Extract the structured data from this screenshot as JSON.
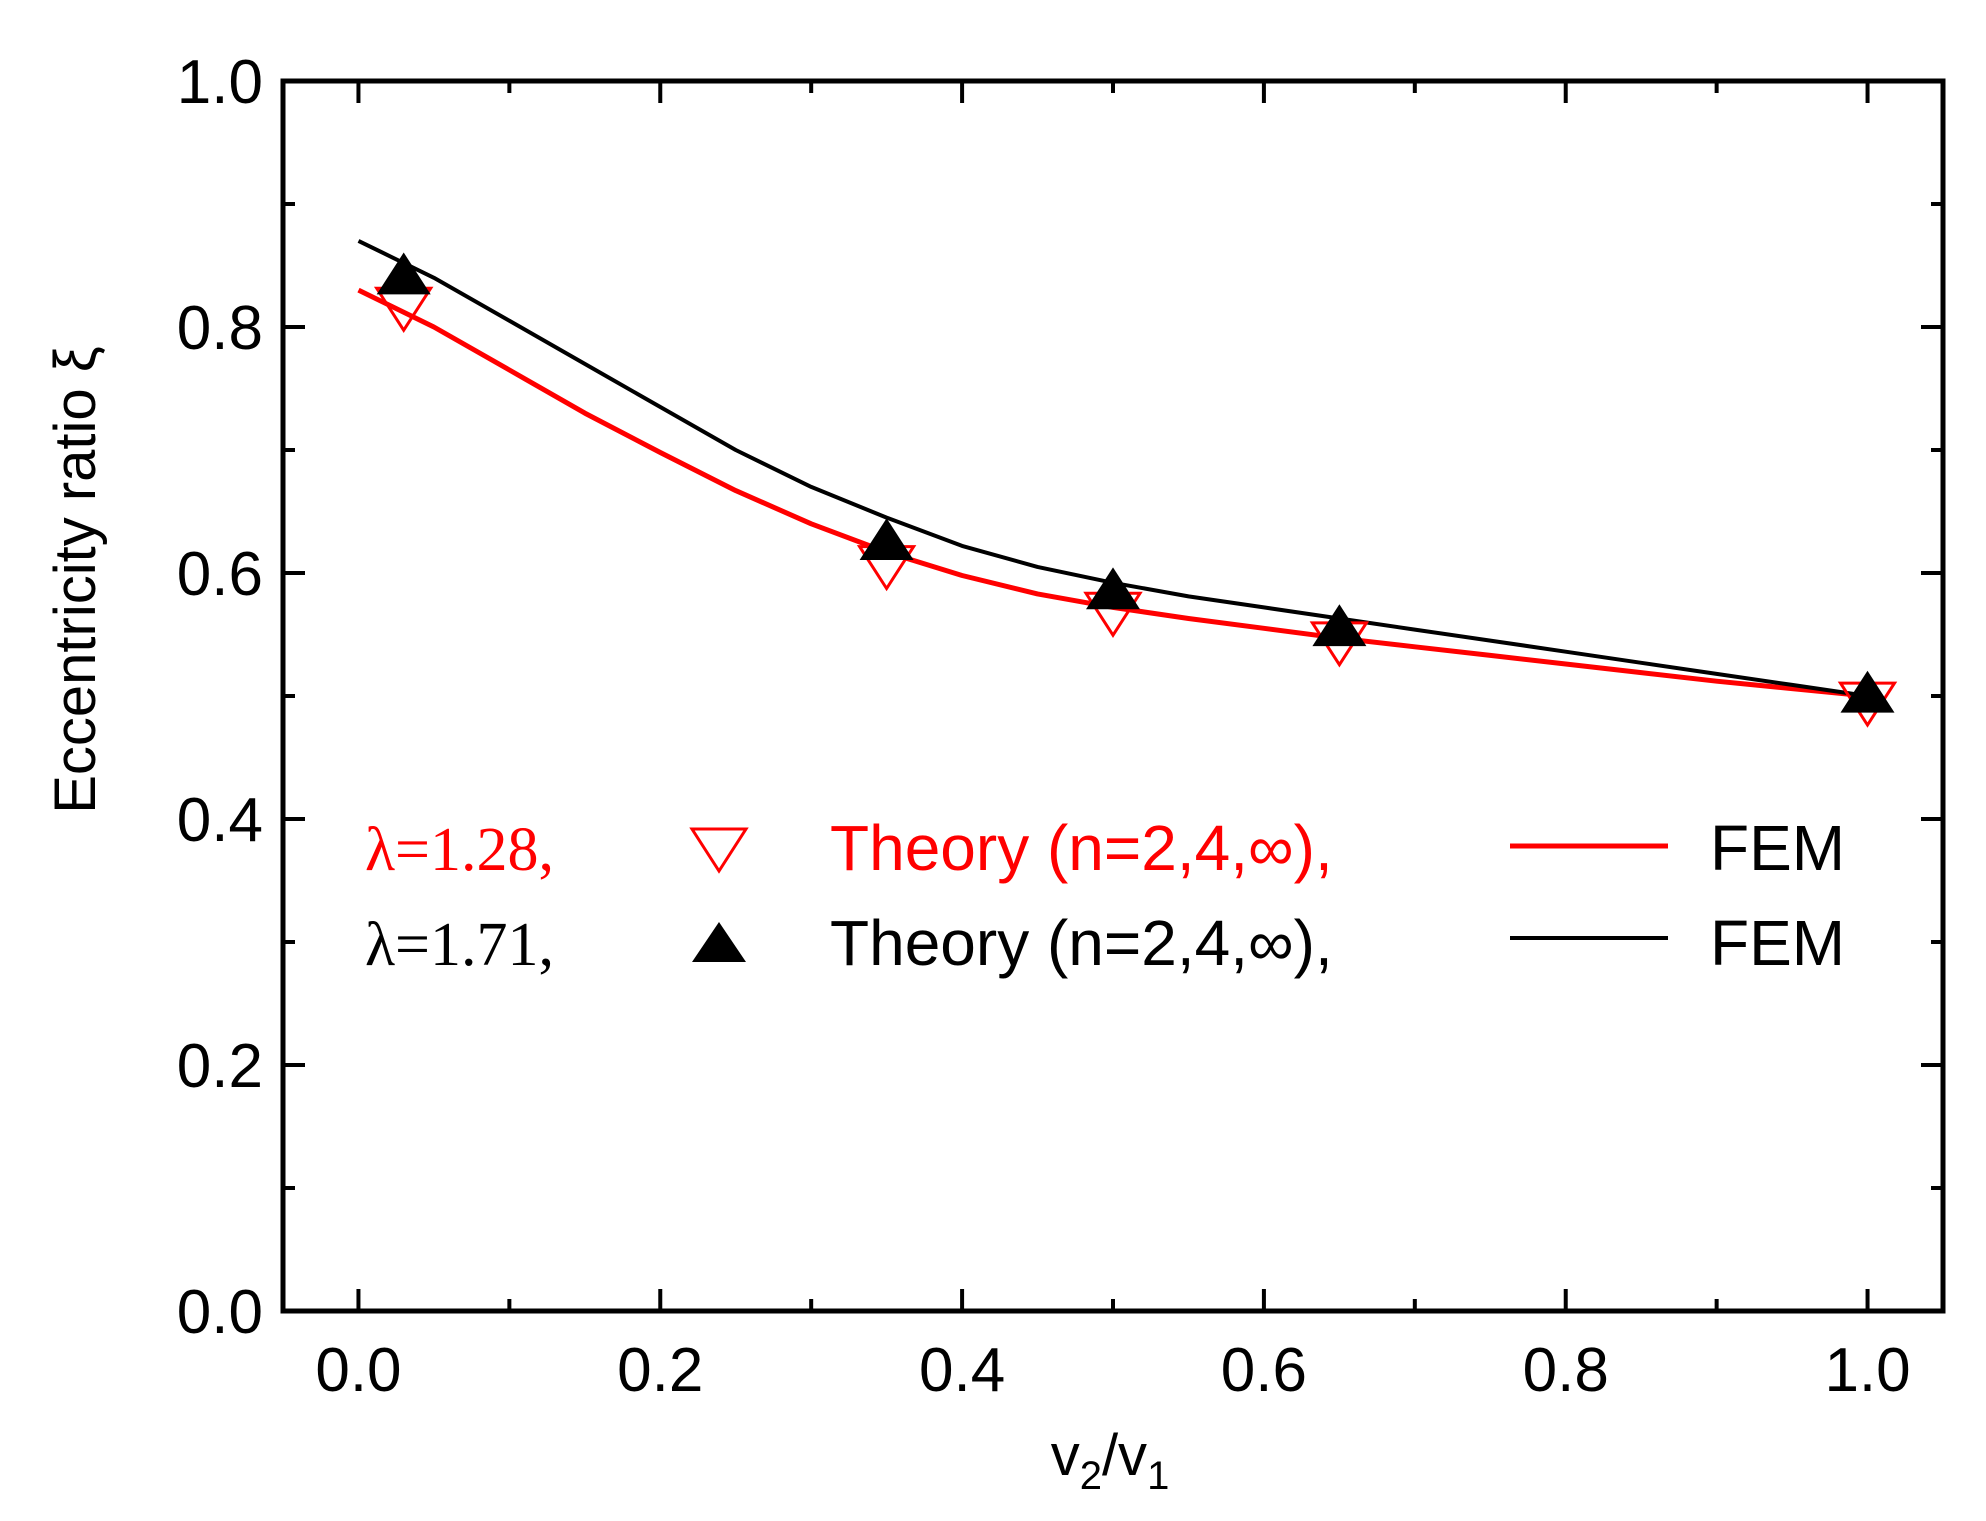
{
  "chart_data": {
    "type": "line",
    "xlabel_main": "v",
    "xlabel_sub1": "2",
    "xlabel_slash": "/v",
    "xlabel_sub2": "1",
    "ylabel": "Eccentricity ratio ξ",
    "xlim": [
      -0.05,
      1.05
    ],
    "ylim": [
      0.0,
      1.0
    ],
    "x_ticks": [
      {
        "v": 0.0,
        "label": "0.0"
      },
      {
        "v": 0.2,
        "label": "0.2"
      },
      {
        "v": 0.4,
        "label": "0.4"
      },
      {
        "v": 0.6,
        "label": "0.6"
      },
      {
        "v": 0.8,
        "label": "0.8"
      },
      {
        "v": 1.0,
        "label": "1.0"
      }
    ],
    "x_minor": [
      0.1,
      0.3,
      0.5,
      0.7,
      0.9
    ],
    "y_ticks": [
      {
        "v": 0.0,
        "label": "0.0"
      },
      {
        "v": 0.2,
        "label": "0.2"
      },
      {
        "v": 0.4,
        "label": "0.4"
      },
      {
        "v": 0.6,
        "label": "0.6"
      },
      {
        "v": 0.8,
        "label": "0.8"
      },
      {
        "v": 1.0,
        "label": "1.0"
      }
    ],
    "y_minor": [
      0.1,
      0.3,
      0.5,
      0.7,
      0.9
    ],
    "series": [
      {
        "name": "FEM λ=1.28",
        "kind": "line",
        "color": "#ff0000",
        "x": [
          0.0,
          0.05,
          0.1,
          0.15,
          0.2,
          0.25,
          0.3,
          0.35,
          0.4,
          0.45,
          0.5,
          0.55,
          0.6,
          0.65,
          0.7,
          0.75,
          0.8,
          0.85,
          0.9,
          0.95,
          1.0
        ],
        "y": [
          0.83,
          0.8,
          0.765,
          0.73,
          0.698,
          0.667,
          0.64,
          0.617,
          0.598,
          0.583,
          0.572,
          0.563,
          0.555,
          0.547,
          0.54,
          0.533,
          0.526,
          0.519,
          0.512,
          0.506,
          0.5
        ]
      },
      {
        "name": "FEM λ=1.71",
        "kind": "line",
        "color": "#000000",
        "x": [
          0.0,
          0.05,
          0.1,
          0.15,
          0.2,
          0.25,
          0.3,
          0.35,
          0.4,
          0.45,
          0.5,
          0.55,
          0.6,
          0.65,
          0.7,
          0.75,
          0.8,
          0.85,
          0.9,
          0.95,
          1.0
        ],
        "y": [
          0.87,
          0.84,
          0.805,
          0.77,
          0.735,
          0.7,
          0.67,
          0.645,
          0.622,
          0.605,
          0.592,
          0.581,
          0.572,
          0.563,
          0.554,
          0.545,
          0.536,
          0.527,
          0.518,
          0.509,
          0.5
        ]
      },
      {
        "name": "Theory λ=1.28",
        "kind": "marker",
        "marker": "triangle-down-open",
        "color": "#ff0000",
        "x": [
          0.03,
          0.35,
          0.5,
          0.65,
          1.0
        ],
        "y": [
          0.815,
          0.605,
          0.567,
          0.543,
          0.494
        ]
      },
      {
        "name": "Theory λ=1.71",
        "kind": "marker",
        "marker": "triangle-up-filled",
        "color": "#000000",
        "x": [
          0.03,
          0.35,
          0.5,
          0.65,
          1.0
        ],
        "y": [
          0.843,
          0.627,
          0.587,
          0.557,
          0.503
        ]
      }
    ],
    "legend": [
      {
        "lambda": "λ=1.28,",
        "theory": "Theory (n=2,4,∞),",
        "fem": "FEM",
        "color": "#ff0000",
        "marker": "triangle-down-open"
      },
      {
        "lambda": "λ=1.71,",
        "theory": "Theory (n=2,4,∞),",
        "fem": "FEM",
        "color": "#000000",
        "marker": "triangle-up-filled"
      }
    ],
    "legend_position": "center-left"
  }
}
